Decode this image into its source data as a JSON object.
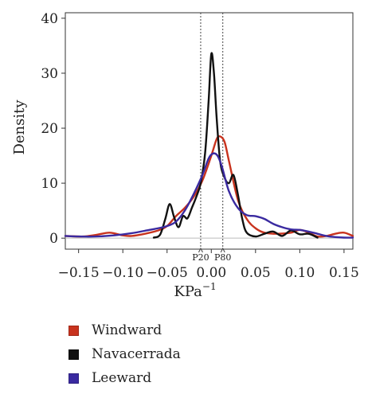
{
  "chart_data": {
    "type": "line",
    "title": "",
    "xlabel": "KPa",
    "xlabel_superscript": "−1",
    "ylabel": "Density",
    "xlim": [
      -0.165,
      0.16
    ],
    "ylim": [
      -2,
      41
    ],
    "xticks": [
      -0.15,
      -0.1,
      -0.05,
      0.0,
      0.05,
      0.1,
      0.15
    ],
    "xtick_labels": [
      "−0.15",
      "−0.10",
      "−0.05",
      "0.00",
      "0.05",
      "0.10",
      "0.15"
    ],
    "yticks": [
      0,
      10,
      20,
      30,
      40
    ],
    "ytick_labels": [
      "0",
      "10",
      "20",
      "30",
      "40"
    ],
    "grid": false,
    "legend_position": "bottom-left",
    "reference_lines": [
      {
        "label": "P20",
        "x": -0.012
      },
      {
        "label": "P80",
        "x": 0.013
      }
    ],
    "series": [
      {
        "name": "Windward",
        "color": "#c8331e",
        "x": [
          -0.165,
          -0.145,
          -0.13,
          -0.115,
          -0.1,
          -0.09,
          -0.075,
          -0.06,
          -0.05,
          -0.04,
          -0.03,
          -0.02,
          -0.01,
          0.0,
          0.006,
          0.01,
          0.015,
          0.02,
          0.03,
          0.04,
          0.05,
          0.06,
          0.075,
          0.09,
          0.1,
          0.11,
          0.12,
          0.13,
          0.14,
          0.15,
          0.16
        ],
        "y": [
          0.4,
          0.3,
          0.6,
          1.0,
          0.5,
          0.4,
          0.8,
          1.4,
          2.2,
          4.0,
          5.5,
          7.5,
          10.5,
          15.0,
          18.0,
          18.5,
          17.5,
          14.0,
          7.0,
          3.5,
          1.8,
          1.0,
          0.8,
          1.0,
          1.5,
          1.0,
          0.3,
          0.4,
          0.8,
          1.0,
          0.4
        ]
      },
      {
        "name": "Navacerrada",
        "color": "#111111",
        "x": [
          -0.065,
          -0.058,
          -0.052,
          -0.047,
          -0.042,
          -0.037,
          -0.032,
          -0.027,
          -0.022,
          -0.017,
          -0.012,
          -0.007,
          -0.003,
          0.0,
          0.003,
          0.006,
          0.01,
          0.015,
          0.02,
          0.025,
          0.03,
          0.035,
          0.04,
          0.05,
          0.06,
          0.07,
          0.08,
          0.09,
          0.1,
          0.11,
          0.12
        ],
        "y": [
          0.1,
          0.6,
          3.5,
          6.2,
          3.8,
          2.0,
          4.0,
          3.6,
          5.5,
          7.5,
          10.0,
          15.5,
          25.0,
          33.5,
          30.0,
          22.0,
          14.0,
          11.0,
          10.0,
          11.5,
          8.0,
          3.5,
          1.0,
          0.3,
          0.8,
          1.2,
          0.4,
          1.4,
          0.7,
          0.8,
          0.1
        ]
      },
      {
        "name": "Leeward",
        "color": "#3a2aa0",
        "x": [
          -0.165,
          -0.15,
          -0.13,
          -0.11,
          -0.09,
          -0.07,
          -0.06,
          -0.05,
          -0.04,
          -0.03,
          -0.02,
          -0.01,
          -0.003,
          0.002,
          0.007,
          0.012,
          0.02,
          0.03,
          0.04,
          0.05,
          0.06,
          0.07,
          0.08,
          0.09,
          0.1,
          0.11,
          0.12,
          0.13,
          0.14,
          0.15,
          0.16
        ],
        "y": [
          0.4,
          0.3,
          0.3,
          0.5,
          0.9,
          1.5,
          1.8,
          2.2,
          3.0,
          5.0,
          8.0,
          11.5,
          14.5,
          15.4,
          15.0,
          13.0,
          8.5,
          5.5,
          4.2,
          4.0,
          3.5,
          2.6,
          2.0,
          1.6,
          1.5,
          1.2,
          0.8,
          0.4,
          0.2,
          0.1,
          0.1
        ]
      }
    ]
  }
}
